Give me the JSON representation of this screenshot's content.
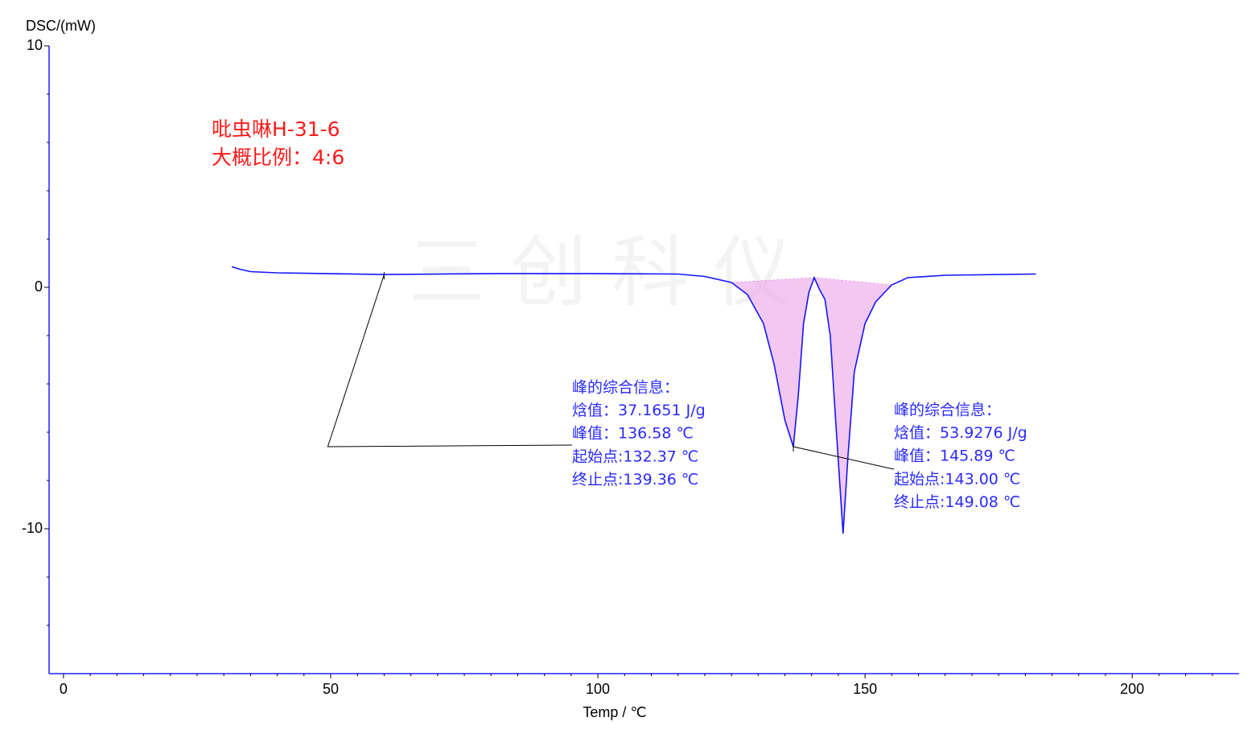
{
  "chart_data": {
    "type": "line",
    "ylabel": "DSC/(mW)",
    "xlabel": "Temp / ℃",
    "title_lines": [
      "吡虫啉H-31-6",
      "大概比例：4:6"
    ],
    "watermark": "三 创 科 仪",
    "xlim": [
      -2.7,
      220
    ],
    "ylim": [
      -16,
      10
    ],
    "xticks": [
      0,
      50,
      100,
      150,
      200
    ],
    "yticks": [
      -10,
      0,
      10
    ],
    "xminorticks": [
      5,
      10,
      15,
      20,
      25,
      30,
      35,
      40,
      45,
      55,
      60,
      65,
      70,
      75,
      80,
      85,
      90,
      95,
      105,
      110,
      115,
      120,
      125,
      130,
      135,
      140,
      145,
      155,
      160,
      165,
      170,
      175,
      180,
      185,
      190,
      195,
      205,
      210,
      215
    ],
    "yminorticks": [
      -14,
      -12,
      -8,
      -6,
      -4,
      -2,
      2,
      4,
      6,
      8
    ],
    "color": "#1414ff",
    "fill_color": "#e9a3e9",
    "x": [
      31.5,
      33,
      35,
      40,
      60,
      80,
      100,
      115,
      120,
      125,
      128,
      131,
      133,
      135,
      136.58,
      137.5,
      138.5,
      139.5,
      140.5,
      141.5,
      142.5,
      143.5,
      144.5,
      145.89,
      146.8,
      148,
      150,
      152,
      155,
      158,
      165,
      182
    ],
    "values": [
      0.85,
      0.75,
      0.65,
      0.6,
      0.53,
      0.57,
      0.57,
      0.55,
      0.45,
      0.2,
      -0.3,
      -1.5,
      -3.2,
      -5.5,
      -6.6,
      -4.5,
      -1.5,
      -0.2,
      0.4,
      -0.1,
      -0.5,
      -2,
      -5.5,
      -10.2,
      -7,
      -3.5,
      -1.5,
      -0.6,
      0.1,
      0.4,
      0.5,
      0.55
    ],
    "annotations": [
      {
        "lines": [
          "峰的综合信息：",
          "焓值：37.1651 J/g",
          "峰值：136.58 ℃",
          "起始点:132.37 ℃",
          "终止点:139.36 ℃"
        ]
      },
      {
        "lines": [
          "峰的综合信息：",
          "焓值：53.9276 J/g",
          "峰值：145.89 ℃",
          "起始点:143.00 ℃",
          "终止点:149.08 ℃"
        ]
      }
    ]
  }
}
